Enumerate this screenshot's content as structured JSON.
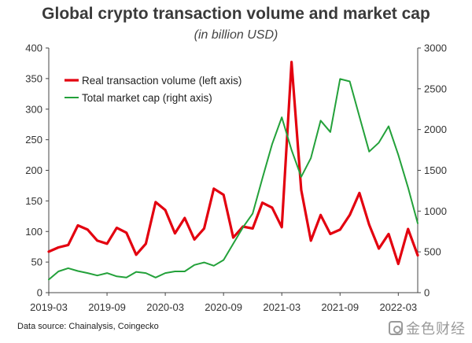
{
  "chart_data": {
    "type": "line",
    "title": "Global crypto transaction volume and market cap",
    "subtitle": "(in billion USD)",
    "x_ticks": [
      "2019-03",
      "2019-09",
      "2020-03",
      "2020-09",
      "2021-03",
      "2021-09",
      "2022-03"
    ],
    "y_left": {
      "min": 0,
      "max": 400,
      "ticks": [
        "0",
        "50",
        "100",
        "150",
        "200",
        "250",
        "300",
        "350",
        "400"
      ]
    },
    "y_right": {
      "min": 0,
      "max": 3000,
      "ticks": [
        "0",
        "500",
        "1000",
        "1500",
        "2000",
        "2500",
        "3000"
      ]
    },
    "grid": false,
    "legend_position": "top-left",
    "series": [
      {
        "name": "Real transaction volume (left axis)",
        "axis": "left",
        "color": "#e3000f",
        "x": [
          "2019-03",
          "2019-04",
          "2019-05",
          "2019-06",
          "2019-07",
          "2019-08",
          "2019-09",
          "2019-10",
          "2019-11",
          "2019-12",
          "2020-01",
          "2020-02",
          "2020-03",
          "2020-04",
          "2020-05",
          "2020-06",
          "2020-07",
          "2020-08",
          "2020-09",
          "2020-10",
          "2020-11",
          "2020-12",
          "2021-01",
          "2021-02",
          "2021-03",
          "2021-04",
          "2021-05",
          "2021-06",
          "2021-07",
          "2021-08",
          "2021-09",
          "2021-10",
          "2021-11",
          "2021-12",
          "2022-01",
          "2022-02",
          "2022-03",
          "2022-04",
          "2022-05"
        ],
        "values": [
          67,
          74,
          78,
          110,
          103,
          85,
          80,
          106,
          98,
          62,
          80,
          148,
          135,
          97,
          122,
          87,
          105,
          170,
          160,
          90,
          108,
          105,
          147,
          139,
          107,
          377,
          168,
          85,
          127,
          96,
          103,
          127,
          163,
          111,
          72,
          96,
          47,
          104,
          61
        ]
      },
      {
        "name": "Total market cap (right axis)",
        "axis": "right",
        "color": "#23a13a",
        "x": [
          "2019-03",
          "2019-04",
          "2019-05",
          "2019-06",
          "2019-07",
          "2019-08",
          "2019-09",
          "2019-10",
          "2019-11",
          "2019-12",
          "2020-01",
          "2020-02",
          "2020-03",
          "2020-04",
          "2020-05",
          "2020-06",
          "2020-07",
          "2020-08",
          "2020-09",
          "2020-10",
          "2020-11",
          "2020-12",
          "2021-01",
          "2021-02",
          "2021-03",
          "2021-04",
          "2021-05",
          "2021-06",
          "2021-07",
          "2021-08",
          "2021-09",
          "2021-10",
          "2021-11",
          "2021-12",
          "2022-01",
          "2022-02",
          "2022-03",
          "2022-04",
          "2022-05"
        ],
        "values": [
          160,
          260,
          300,
          265,
          240,
          210,
          240,
          200,
          185,
          255,
          240,
          185,
          240,
          260,
          260,
          340,
          370,
          330,
          400,
          600,
          800,
          970,
          1400,
          1820,
          2150,
          1750,
          1420,
          1650,
          2110,
          1970,
          2620,
          2590,
          2160,
          1730,
          1840,
          2040,
          1690,
          1290,
          850
        ]
      }
    ],
    "source": "Data source: Chainalysis, Coingecko"
  },
  "watermark": {
    "label": "金色财经",
    "icon": "logo-icon"
  }
}
